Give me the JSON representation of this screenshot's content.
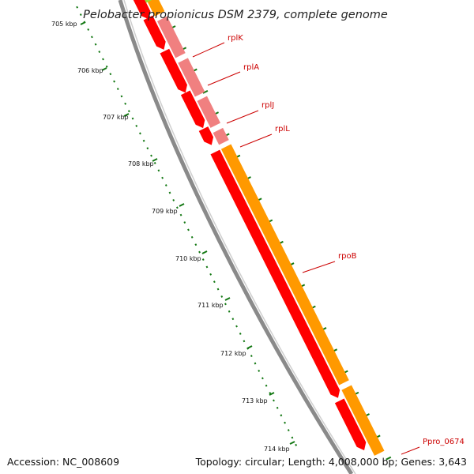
{
  "title": "Pelobacter propionicus DSM 2379, complete genome",
  "ruler": {
    "labels": [
      "705 kbp",
      "706 kbp",
      "707 kbp",
      "708 kbp",
      "709 kbp",
      "710 kbp",
      "711 kbp",
      "712 kbp",
      "713 kbp",
      "714 kbp"
    ]
  },
  "genes": [
    {
      "name": "rplK",
      "strand": "minus",
      "color": "#ff0000",
      "lane": "inner"
    },
    {
      "name": "rplA",
      "strand": "minus",
      "color": "#ff0000",
      "lane": "inner"
    },
    {
      "name": "rplJ",
      "strand": "minus",
      "color": "#ff0000",
      "lane": "inner"
    },
    {
      "name": "rplL",
      "strand": "minus",
      "color": "#ff0000",
      "lane": "inner"
    },
    {
      "name": "rpoB",
      "strand": "minus",
      "color": "#ff0000",
      "lane": "inner"
    },
    {
      "name": "Ppro_0674",
      "strand": "minus",
      "color": "#ff0000",
      "lane": "inner"
    }
  ],
  "colors": {
    "cds": "#ff0000",
    "cds_light": "#f08080",
    "outer": "#ff9900",
    "rrna": "#99dd33",
    "backbone": "#888888",
    "ticks": "#117711",
    "label": "#cc0000"
  },
  "footer": {
    "accession": "Accession: NC_008609",
    "stats": "Topology: circular; Length: 4,008,000 bp; Genes: 3,643"
  }
}
